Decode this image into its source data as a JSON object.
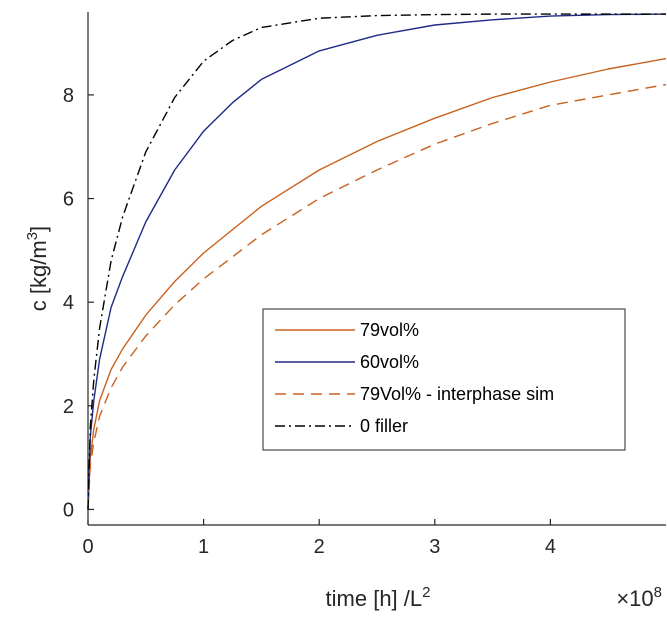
{
  "chart_data": {
    "type": "line",
    "xlabel": "time [h] /L",
    "xlabel_superscript": "2",
    "ylabel": "c [kg/m",
    "ylabel_superscript": "3",
    "ylabel_suffix": "]",
    "x_exponent_prefix": "×10",
    "x_exponent_power": "8",
    "xlim": [
      0,
      5.0
    ],
    "ylim": [
      -0.3,
      9.6
    ],
    "xticks": [
      0,
      1,
      2,
      3,
      4
    ],
    "yticks": [
      0,
      2,
      4,
      6,
      8
    ],
    "grid": false,
    "legend_position": "lower-right",
    "series": [
      {
        "name": "79vol%",
        "color": "#C8621E",
        "dash": "solid",
        "x": [
          0,
          0.02,
          0.05,
          0.1,
          0.2,
          0.3,
          0.5,
          0.75,
          1.0,
          1.5,
          2.0,
          2.5,
          3.0,
          3.5,
          4.0,
          4.5,
          5.0
        ],
        "y": [
          0,
          1.0,
          1.55,
          2.1,
          2.7,
          3.1,
          3.75,
          4.4,
          4.95,
          5.85,
          6.55,
          7.1,
          7.55,
          7.95,
          8.25,
          8.5,
          8.7
        ]
      },
      {
        "name": "60vol%",
        "color": "#1F2A86",
        "dash": "solid",
        "x": [
          0,
          0.02,
          0.05,
          0.1,
          0.2,
          0.3,
          0.5,
          0.75,
          1.0,
          1.25,
          1.5,
          2.0,
          2.5,
          3.0,
          3.5,
          4.0,
          4.5,
          5.0
        ],
        "y": [
          0,
          1.4,
          2.1,
          2.9,
          3.9,
          4.5,
          5.55,
          6.55,
          7.3,
          7.85,
          8.3,
          8.85,
          9.15,
          9.35,
          9.45,
          9.52,
          9.55,
          9.56
        ]
      },
      {
        "name": "79Vol% - interphase sim",
        "color": "#C8621E",
        "dash": "dashed",
        "x": [
          0,
          0.02,
          0.05,
          0.1,
          0.2,
          0.3,
          0.5,
          0.75,
          1.0,
          1.5,
          2.0,
          2.5,
          3.0,
          3.5,
          4.0,
          4.5,
          5.0
        ],
        "y": [
          0,
          0.85,
          1.3,
          1.8,
          2.35,
          2.75,
          3.35,
          3.95,
          4.45,
          5.3,
          6.0,
          6.55,
          7.05,
          7.45,
          7.8,
          8.0,
          8.2
        ]
      },
      {
        "name": "0 filler",
        "color": "#000000",
        "dash": "dashdot",
        "x": [
          0,
          0.02,
          0.05,
          0.1,
          0.2,
          0.3,
          0.5,
          0.75,
          1.0,
          1.25,
          1.5,
          2.0,
          2.5,
          3.0,
          3.5,
          4.0,
          4.5,
          5.0
        ],
        "y": [
          0,
          1.6,
          2.5,
          3.5,
          4.8,
          5.65,
          6.9,
          7.95,
          8.65,
          9.05,
          9.3,
          9.48,
          9.53,
          9.55,
          9.56,
          9.56,
          9.56,
          9.56
        ]
      }
    ]
  }
}
